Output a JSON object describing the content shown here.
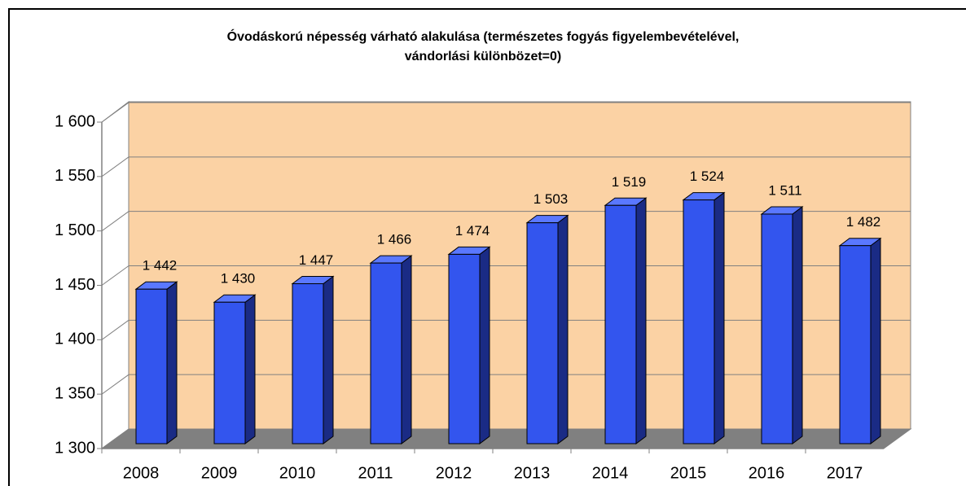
{
  "chart_data": {
    "type": "bar3d",
    "title": "Óvodáskorú népesség várható alakulása (természetes fogyás figyelembevételével, vándorlási különbözet=0)",
    "categories": [
      "2008",
      "2009",
      "2010",
      "2011",
      "2012",
      "2013",
      "2014",
      "2015",
      "2016",
      "2017"
    ],
    "values": [
      1442,
      1430,
      1447,
      1466,
      1474,
      1503,
      1519,
      1524,
      1511,
      1482
    ],
    "value_labels": [
      "1 442",
      "1 430",
      "1 447",
      "1 466",
      "1 474",
      "1 503",
      "1 519",
      "1 524",
      "1 511",
      "1 482"
    ],
    "color": "#3355ee",
    "ylim": [
      1300,
      1600
    ],
    "yticks": [
      {
        "value": 1300,
        "label": "1 300"
      },
      {
        "value": 1350,
        "label": "1 350"
      },
      {
        "value": 1400,
        "label": "1 400"
      },
      {
        "value": 1450,
        "label": "1 450"
      },
      {
        "value": 1500,
        "label": "1 500"
      },
      {
        "value": 1550,
        "label": "1 550"
      },
      {
        "value": 1600,
        "label": "1 600"
      }
    ],
    "grid": true
  }
}
